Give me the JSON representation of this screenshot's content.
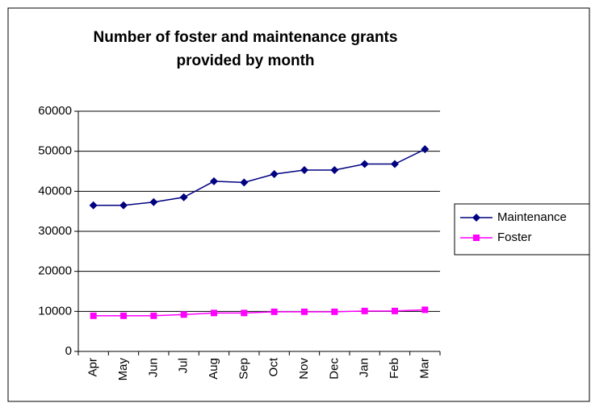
{
  "chart_data": {
    "type": "line",
    "title": [
      "Number of foster and maintenance grants",
      "provided by month"
    ],
    "categories": [
      "Apr",
      "May",
      "Jun",
      "Jul",
      "Aug",
      "Sep",
      "Oct",
      "Nov",
      "Dec",
      "Jan",
      "Feb",
      "Mar"
    ],
    "series": [
      {
        "name": "Maintenance",
        "color": "#000080",
        "marker": "diamond",
        "values": [
          36500,
          36500,
          37300,
          38500,
          42500,
          42200,
          44300,
          45300,
          45300,
          46800,
          46800,
          50500
        ]
      },
      {
        "name": "Foster",
        "color": "#ff00ff",
        "marker": "square",
        "values": [
          8900,
          8900,
          8900,
          9200,
          9600,
          9600,
          9900,
          9900,
          9900,
          10100,
          10100,
          10400
        ]
      }
    ],
    "ylim": [
      0,
      60000
    ],
    "yticks": [
      0,
      10000,
      20000,
      30000,
      40000,
      50000,
      60000
    ],
    "grid": true,
    "legend": "right"
  }
}
